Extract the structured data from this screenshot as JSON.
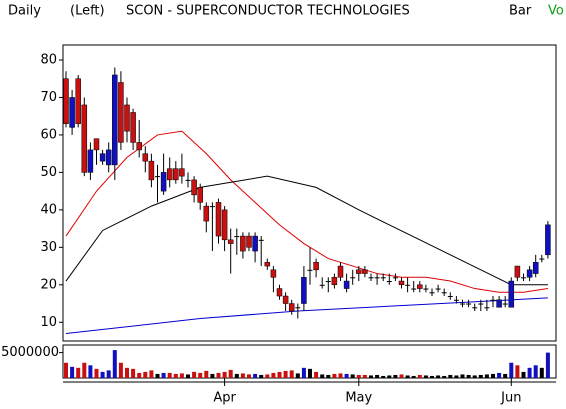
{
  "chart_data": [
    {
      "type": "candlestick",
      "period": "Daily",
      "axis_side": "(Left)",
      "title": "SCON - SUPERCONDUCTOR TECHNOLOGIES",
      "bar_style": "Bar",
      "indicator": "Vo",
      "categories": [
        null,
        null,
        null,
        null,
        null,
        null,
        null,
        null,
        null,
        null,
        null,
        null,
        null,
        null,
        null,
        null,
        null,
        null,
        null,
        null,
        null,
        null,
        null,
        null,
        null,
        null,
        "Apr",
        null,
        null,
        null,
        null,
        null,
        null,
        null,
        null,
        null,
        null,
        null,
        null,
        null,
        null,
        null,
        null,
        null,
        null,
        null,
        null,
        null,
        "May",
        null,
        null,
        null,
        null,
        null,
        null,
        null,
        null,
        null,
        null,
        null,
        null,
        null,
        null,
        null,
        null,
        null,
        null,
        null,
        null,
        null,
        null,
        null,
        null,
        "Jun",
        null,
        null,
        null,
        null,
        null,
        null
      ],
      "open": [
        75,
        62,
        75,
        68,
        50,
        59,
        53,
        52,
        52,
        74,
        68,
        66,
        58,
        55,
        53,
        49,
        45,
        51,
        51,
        51,
        48,
        48,
        46,
        41,
        41,
        42,
        40,
        32,
        33,
        33,
        33,
        29,
        32,
        26,
        24,
        19,
        17,
        15,
        14,
        15,
        24,
        26,
        20,
        21,
        22,
        25,
        19,
        22,
        24,
        24,
        22,
        22,
        22,
        21,
        22,
        21,
        20,
        19,
        20,
        19,
        18,
        19,
        18,
        17,
        16,
        15,
        15,
        14,
        15,
        14,
        16,
        14,
        15,
        14,
        25,
        22,
        22,
        23,
        27,
        28
      ],
      "high": [
        77,
        72,
        76,
        70,
        58,
        59,
        56,
        58,
        78,
        77,
        70,
        67,
        64,
        57,
        55,
        52,
        55,
        54,
        53,
        55,
        50,
        49,
        47,
        42,
        42,
        43,
        41,
        35,
        35,
        34,
        34,
        34,
        33,
        27,
        25,
        20,
        18,
        16,
        15,
        25,
        30,
        27,
        22,
        22,
        23,
        26,
        23,
        24,
        25,
        25,
        23,
        23,
        23,
        23,
        23,
        22,
        22,
        21,
        21,
        20,
        19,
        20,
        19,
        18,
        17,
        16,
        16,
        15,
        16,
        16,
        17,
        17,
        17,
        22,
        25,
        23,
        25,
        28,
        28,
        37
      ],
      "low": [
        62,
        60,
        62,
        49,
        48,
        52,
        52,
        50,
        48,
        56,
        58,
        56,
        54,
        50,
        46,
        42,
        44,
        46,
        47,
        47,
        46,
        42,
        40,
        34,
        29,
        31,
        29,
        23,
        28,
        27,
        29,
        26,
        25,
        24,
        18,
        16,
        13,
        12,
        11,
        13,
        20,
        22,
        19,
        18,
        19,
        21,
        18,
        20,
        21,
        22,
        21,
        20,
        21,
        20,
        21,
        19,
        18,
        18,
        18,
        18,
        17,
        18,
        17,
        16,
        15,
        14,
        14,
        13,
        13,
        13,
        14,
        14,
        14,
        14,
        21,
        21,
        21,
        22,
        26,
        27
      ],
      "close": [
        63,
        70,
        63,
        50,
        56,
        56,
        55,
        56,
        76,
        58,
        61,
        58,
        56,
        53,
        48,
        49,
        50,
        48,
        48,
        49,
        48,
        44,
        42,
        37,
        41,
        33,
        32,
        31,
        33,
        29,
        30,
        33,
        32,
        25,
        22,
        17,
        15,
        13,
        14,
        22,
        24,
        24,
        20,
        21,
        20,
        22,
        21,
        22,
        23,
        23,
        22,
        22,
        22,
        21,
        22,
        20,
        20,
        19,
        19,
        19,
        18,
        19,
        18,
        17,
        16,
        15,
        15,
        14,
        15,
        14,
        16,
        16,
        15,
        21,
        22,
        22,
        24,
        26,
        27,
        36
      ],
      "up_color": "#1010c0",
      "down_color": "#c81010",
      "flat_color": "#000000",
      "series": [
        {
          "color": "#e00000",
          "x": [
            0,
            5,
            10,
            15,
            19,
            23,
            27,
            31,
            35,
            39,
            43,
            47,
            51,
            55,
            59,
            63,
            67,
            71,
            75,
            79
          ],
          "values": [
            33,
            45,
            54,
            60,
            61,
            55,
            48,
            42,
            36,
            31,
            27,
            25,
            23,
            22,
            22,
            21,
            19,
            18,
            18,
            19
          ]
        },
        {
          "color": "#000000",
          "x": [
            0,
            6,
            14,
            22,
            33,
            41,
            48,
            58,
            68,
            73,
            79
          ],
          "values": [
            21,
            34.5,
            41,
            46,
            49,
            46,
            40,
            32,
            24,
            20,
            20
          ]
        },
        {
          "color": "#0000d0",
          "x": [
            0,
            22,
            38,
            79
          ],
          "values": [
            7,
            11,
            13,
            16.5
          ]
        }
      ],
      "ylim": [
        5,
        84
      ],
      "yticks": [
        10,
        20,
        30,
        40,
        50,
        60,
        70,
        80
      ]
    },
    {
      "type": "bar",
      "values": [
        3000000,
        2200000,
        2000000,
        3000000,
        2500000,
        1800000,
        1200000,
        1500000,
        5500000,
        3000000,
        2000000,
        1800000,
        1000000,
        1200000,
        1500000,
        800000,
        1000000,
        1000000,
        800000,
        900000,
        700000,
        1200000,
        1000000,
        1400000,
        800000,
        1000000,
        1200000,
        1600000,
        800000,
        900000,
        700000,
        800000,
        600000,
        700000,
        1000000,
        1200000,
        1400000,
        1500000,
        900000,
        2000000,
        1800000,
        1200000,
        700000,
        600000,
        800000,
        900000,
        800000,
        700000,
        600000,
        600000,
        500000,
        600000,
        400000,
        500000,
        600000,
        700000,
        500000,
        400000,
        600000,
        500000,
        400000,
        500000,
        400000,
        600000,
        500000,
        700000,
        600000,
        500000,
        600000,
        700000,
        800000,
        1000000,
        800000,
        3000000,
        2500000,
        1200000,
        2000000,
        2500000,
        2000000,
        5000000
      ],
      "ylim": [
        0,
        6500000
      ],
      "yticks": [
        5000000
      ]
    }
  ]
}
